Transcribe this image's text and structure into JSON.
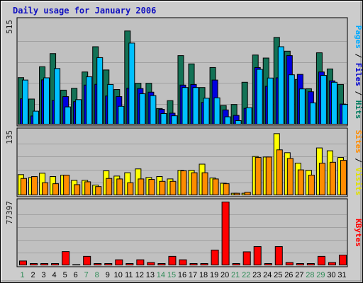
{
  "chart_data": {
    "type": "bar",
    "title": "Daily usage for January 2006",
    "days": [
      "1",
      "2",
      "3",
      "4",
      "5",
      "6",
      "7",
      "8",
      "9",
      "10",
      "11",
      "12",
      "13",
      "14",
      "15",
      "16",
      "17",
      "18",
      "19",
      "20",
      "21",
      "22",
      "23",
      "24",
      "25",
      "26",
      "27",
      "28",
      "29",
      "30",
      "31"
    ],
    "weekend_days": [
      "1",
      "7",
      "8",
      "14",
      "15",
      "21",
      "22",
      "28",
      "29"
    ],
    "colors": {
      "frame_bg": "#cccccc",
      "panel_bg": "#c0c0c0",
      "grid": "#a0a0a0",
      "title": "#1010c0",
      "day_label": "#000000",
      "weekend_label": "#2e8b57"
    },
    "panels": [
      {
        "id": "pages-files-hits",
        "max_label": "515",
        "max": 515,
        "right_label": [
          {
            "text": "Pages",
            "color": "#00aaff"
          },
          {
            "text": " / ",
            "color": "#000000"
          },
          {
            "text": "Files",
            "color": "#0000cc"
          },
          {
            "text": " / ",
            "color": "#000000"
          },
          {
            "text": "Hits",
            "color": "#007a5e"
          }
        ],
        "series": [
          {
            "name": "Hits",
            "color": "#137256",
            "values": [
              234,
              128,
              288,
              353,
              172,
              181,
              262,
              387,
              272,
              175,
              465,
              206,
              206,
              81,
              120,
              343,
              302,
              185,
              284,
              96,
              101,
              211,
              346,
              331,
              433,
              365,
              225,
              179,
              357,
              277,
              200
            ]
          },
          {
            "name": "Files",
            "color": "#0000e0",
            "values": [
              129,
              44,
              223,
              121,
              140,
              115,
              197,
              201,
              143,
              140,
              182,
              180,
              162,
              77,
              58,
              197,
              200,
              111,
              222,
              74,
              47,
              82,
              284,
              191,
              233,
              343,
              250,
              164,
              262,
              218,
              103
            ]
          },
          {
            "name": "Pages",
            "color": "#00c0ff",
            "values": [
              222,
              68,
              233,
              279,
              89,
              125,
              238,
              333,
              200,
              92,
              405,
              154,
              145,
              56,
              45,
              185,
              185,
              132,
              134,
              40,
              21,
              85,
              275,
              232,
              387,
              248,
              178,
              109,
              245,
              211,
              101
            ]
          }
        ]
      },
      {
        "id": "visits-sites",
        "max_label": "135",
        "max": 135,
        "right_label": [
          {
            "text": "Sites",
            "color": "#ff8c00"
          },
          {
            "text": " / ",
            "color": "#000000"
          },
          {
            "text": "Visits",
            "color": "#e0e000"
          }
        ],
        "series": [
          {
            "name": "Visits",
            "color": "#ffff00",
            "values": [
              44,
              38,
              47,
              40,
              43,
              32,
              32,
              22,
              52,
              41,
              48,
              56,
              38,
              40,
              35,
              53,
              53,
              66,
              37,
              26,
              5,
              5,
              82,
              81,
              130,
              90,
              68,
              53,
              100,
              94,
              80
            ]
          },
          {
            "name": "Sites",
            "color": "#ff8c00",
            "values": [
              36,
              40,
              27,
              25,
              43,
              23,
              29,
              19,
              36,
              35,
              27,
              35,
              34,
              30,
              30,
              52,
              48,
              48,
              35,
              25,
              5,
              7,
              80,
              81,
              96,
              78,
              54,
              43,
              68,
              70,
              74
            ]
          }
        ]
      },
      {
        "id": "kbytes",
        "max_label": "77397",
        "max": 77397,
        "right_label": [
          {
            "text": "KBytes",
            "color": "#ff0000"
          }
        ],
        "series": [
          {
            "name": "KBytes",
            "color": "#ff0000",
            "values": [
              5700,
              2580,
              2580,
              2580,
              17100,
              1290,
              11300,
              2580,
              2580,
              7170,
              2580,
              7170,
              3870,
              2580,
              11300,
              7170,
              2580,
              2580,
              19000,
              77397,
              2580,
              16800,
              23200,
              2580,
              23200,
              3870,
              2580,
              2580,
              11300,
              3870,
              12900
            ]
          }
        ]
      }
    ]
  }
}
